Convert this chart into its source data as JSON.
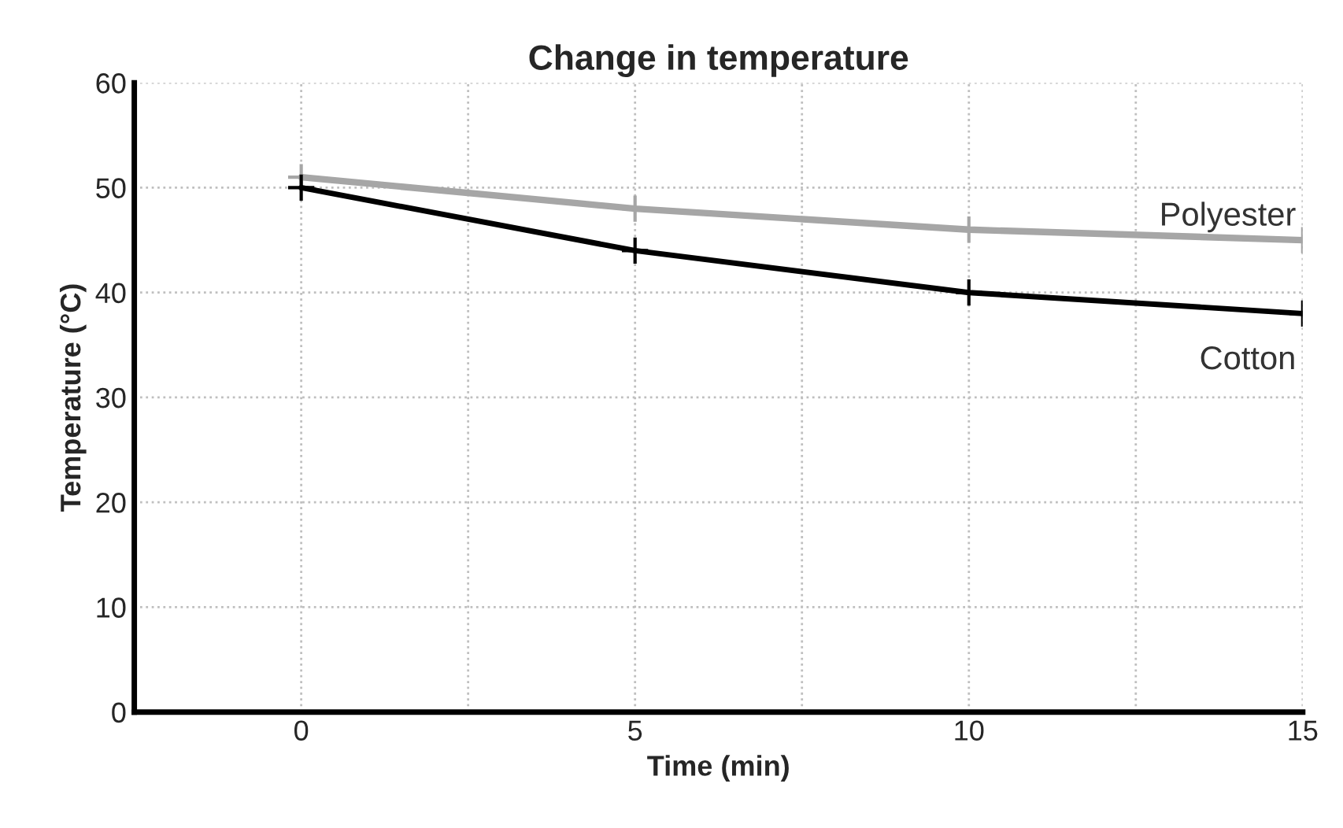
{
  "chart_data": {
    "type": "line",
    "title": "Change in temperature",
    "xlabel": "Time (min)",
    "ylabel": "Temperature (°C)",
    "x": [
      0,
      5,
      10,
      15
    ],
    "series": [
      {
        "name": "Polyester",
        "color": "#a6a6a6",
        "values": [
          51,
          48,
          46,
          45
        ]
      },
      {
        "name": "Cotton",
        "color": "#000000",
        "values": [
          50,
          44,
          40,
          38
        ]
      }
    ],
    "xlim": [
      -2.5,
      15
    ],
    "xticks": [
      0,
      {
        "value": 2.5,
        "label": null
      },
      5,
      {
        "value": 7.5,
        "label": null
      },
      10,
      {
        "value": 12.5,
        "label": null
      },
      15
    ],
    "ylim": [
      0,
      60
    ],
    "yticks": [
      0,
      10,
      20,
      30,
      40,
      50,
      60
    ],
    "grid": true,
    "marker": "cross",
    "line_style": "solid",
    "legend": false
  }
}
